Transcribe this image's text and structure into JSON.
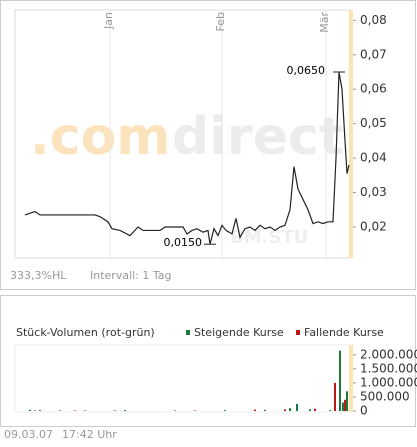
{
  "chart_data": [
    {
      "type": "line",
      "x": [
        0,
        10,
        15,
        25,
        35,
        45,
        55,
        65,
        70,
        75,
        83,
        87,
        95,
        105,
        113,
        118,
        125,
        135,
        140,
        150,
        158,
        162,
        167,
        172,
        178,
        183,
        185,
        189,
        193,
        197,
        201,
        207,
        211,
        215,
        220,
        225,
        230,
        235,
        240,
        245,
        250,
        255,
        260,
        265,
        269,
        273,
        278,
        283,
        288,
        293,
        298,
        303,
        308,
        311,
        314,
        317,
        320,
        322,
        324
      ],
      "series": [
        {
          "name": "BM.STU",
          "color": "#222222",
          "values": [
            0.0235,
            0.0245,
            0.0235,
            0.0235,
            0.0235,
            0.0235,
            0.0235,
            0.0235,
            0.0235,
            0.023,
            0.0215,
            0.0195,
            0.019,
            0.0175,
            0.02,
            0.019,
            0.019,
            0.019,
            0.02,
            0.02,
            0.02,
            0.018,
            0.019,
            0.0195,
            0.0185,
            0.019,
            0.015,
            0.0195,
            0.0175,
            0.0205,
            0.019,
            0.018,
            0.0225,
            0.017,
            0.0195,
            0.02,
            0.019,
            0.0205,
            0.0195,
            0.02,
            0.019,
            0.02,
            0.0205,
            0.025,
            0.0375,
            0.031,
            0.028,
            0.025,
            0.021,
            0.0215,
            0.021,
            0.0215,
            0.0215,
            0.04,
            0.065,
            0.06,
            0.045,
            0.0355,
            0.038
          ]
        }
      ],
      "xlim": [
        -10,
        325
      ],
      "xticks": [
        {
          "value": 85,
          "label": "Jan"
        },
        {
          "value": 197,
          "label": "Feb"
        },
        {
          "value": 301,
          "label": "Mär"
        }
      ],
      "ylim": [
        0.011,
        0.083
      ],
      "yticks": [
        {
          "value": 0.02,
          "label": "0,02"
        },
        {
          "value": 0.03,
          "label": "0,03"
        },
        {
          "value": 0.04,
          "label": "0,04"
        },
        {
          "value": 0.05,
          "label": "0,05"
        },
        {
          "value": 0.06,
          "label": "0,06"
        },
        {
          "value": 0.07,
          "label": "0,07"
        },
        {
          "value": 0.08,
          "label": "0,08"
        }
      ],
      "annotations": [
        "0,0650",
        "0,0150"
      ],
      "watermark": [
        ".com",
        "direct"
      ],
      "symbol": "BM.STU",
      "info": [
        "333,3%HL",
        "Intervall: 1 Tag"
      ]
    },
    {
      "type": "bar",
      "title": "Stück-Volumen (rot-grün)",
      "xlim": [
        -10,
        325
      ],
      "ylim": [
        0,
        2100000
      ],
      "yticks": [
        0,
        {
          "value": 500000,
          "label": "500.000"
        },
        {
          "value": 1000000,
          "label": "1.000.000"
        },
        {
          "value": 1500000,
          "label": "1.500.000"
        },
        {
          "value": 2000000,
          "label": "2.000.000"
        }
      ],
      "series": [
        {
          "name": "Steigende Kurse",
          "color": "#1a7a3a",
          "x": [
            5,
            15,
            35,
            60,
            100,
            150,
            200,
            240,
            265,
            272,
            285,
            305,
            315,
            318,
            322
          ],
          "values": [
            40000,
            30000,
            20000,
            20000,
            30000,
            20000,
            30000,
            40000,
            100000,
            250000,
            60000,
            30000,
            2150000,
            300000,
            700000
          ]
        },
        {
          "name": "Fallende Kurse",
          "color": "#c01818",
          "x": [
            10,
            50,
            90,
            170,
            230,
            260,
            290,
            310,
            320
          ],
          "values": [
            20000,
            20000,
            20000,
            20000,
            50000,
            60000,
            80000,
            1000000,
            400000
          ]
        }
      ]
    }
  ],
  "footer": [
    "09.03.07",
    "17:42 Uhr"
  ]
}
